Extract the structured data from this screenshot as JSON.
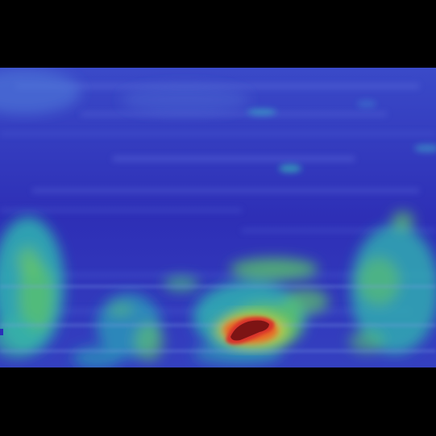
{
  "image": {
    "kind": "heatmap-overlay",
    "colormap": "jet",
    "background_color": "#000000",
    "colors": {
      "low": "#2f3bc4",
      "low_mid": "#3e6fd6",
      "mid": "#27b9b4",
      "high_mid": "#52c36a",
      "high": "#d8302a",
      "peak": "#7d1414"
    },
    "hotspot": {
      "label": "",
      "intensity": 1.0
    }
  }
}
